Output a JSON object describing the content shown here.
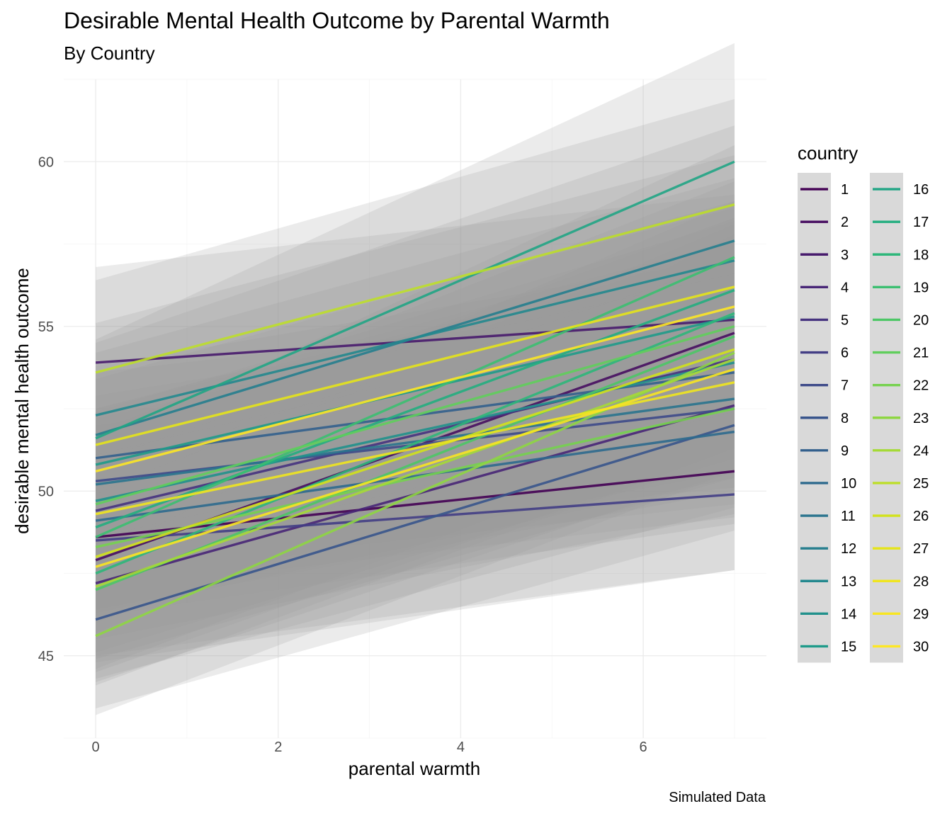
{
  "chart_data": {
    "type": "line",
    "title": "Desirable Mental Health Outcome by Parental Warmth",
    "subtitle": "By Country",
    "xlabel": "parental warmth",
    "ylabel": "desirable mental health outcome",
    "caption": "Simulated Data",
    "xlim": [
      -0.35,
      7.35
    ],
    "ylim": [
      42.5,
      62.5
    ],
    "x_ticks": [
      0,
      2,
      4,
      6
    ],
    "x_tick_labels": [
      "0",
      "2",
      "4",
      "6"
    ],
    "y_ticks": [
      45,
      50,
      55,
      60
    ],
    "y_tick_labels": [
      "45",
      "50",
      "55",
      "60"
    ],
    "grid": true,
    "legend": {
      "title": "country",
      "position": "right",
      "columns": 2
    },
    "confidence_band_color": "#999999",
    "series": [
      {
        "name": "1",
        "color": "#440154",
        "x": [
          0,
          7
        ],
        "y": [
          48.6,
          50.6
        ],
        "ci_lo": [
          44.8,
          47.6
        ],
        "ci_hi": [
          52.4,
          53.6
        ]
      },
      {
        "name": "2",
        "color": "#470E61",
        "x": [
          0,
          7
        ],
        "y": [
          47.9,
          54.8
        ],
        "ci_lo": [
          44.5,
          51.3
        ],
        "ci_hi": [
          51.3,
          58.3
        ]
      },
      {
        "name": "3",
        "color": "#481B6D",
        "x": [
          0,
          7
        ],
        "y": [
          53.9,
          55.2
        ],
        "ci_lo": [
          51.0,
          51.4
        ],
        "ci_hi": [
          56.8,
          59.0
        ]
      },
      {
        "name": "4",
        "color": "#482677",
        "x": [
          0,
          7
        ],
        "y": [
          47.2,
          52.6
        ],
        "ci_lo": [
          44.3,
          49.5
        ],
        "ci_hi": [
          50.1,
          55.7
        ]
      },
      {
        "name": "5",
        "color": "#46337F",
        "x": [
          0,
          7
        ],
        "y": [
          49.4,
          54.0
        ],
        "ci_lo": [
          46.3,
          50.4
        ],
        "ci_hi": [
          52.5,
          57.6
        ]
      },
      {
        "name": "6",
        "color": "#433E85",
        "x": [
          0,
          7
        ],
        "y": [
          48.5,
          49.9
        ],
        "ci_lo": [
          45.0,
          47.6
        ],
        "ci_hi": [
          52.0,
          52.2
        ]
      },
      {
        "name": "7",
        "color": "#3E4A89",
        "x": [
          0,
          7
        ],
        "y": [
          50.3,
          52.5
        ],
        "ci_lo": [
          47.0,
          49.2
        ],
        "ci_hi": [
          53.6,
          55.8
        ]
      },
      {
        "name": "8",
        "color": "#38558C",
        "x": [
          0,
          7
        ],
        "y": [
          46.1,
          52.0
        ],
        "ci_lo": [
          43.4,
          48.8
        ],
        "ci_hi": [
          48.8,
          55.2
        ]
      },
      {
        "name": "9",
        "color": "#33608D",
        "x": [
          0,
          7
        ],
        "y": [
          51.0,
          53.6
        ],
        "ci_lo": [
          48.2,
          50.1
        ],
        "ci_hi": [
          53.8,
          57.1
        ]
      },
      {
        "name": "10",
        "color": "#2E6A8E",
        "x": [
          0,
          7
        ],
        "y": [
          49.1,
          51.8
        ],
        "ci_lo": [
          46.2,
          49.0
        ],
        "ci_hi": [
          52.0,
          54.6
        ]
      },
      {
        "name": "11",
        "color": "#2A748E",
        "x": [
          0,
          7
        ],
        "y": [
          50.2,
          52.8
        ],
        "ci_lo": [
          47.5,
          49.6
        ],
        "ci_hi": [
          52.9,
          56.0
        ]
      },
      {
        "name": "12",
        "color": "#267E8E",
        "x": [
          0,
          7
        ],
        "y": [
          51.7,
          57.6
        ],
        "ci_lo": [
          48.9,
          54.1
        ],
        "ci_hi": [
          54.5,
          61.1
        ]
      },
      {
        "name": "13",
        "color": "#23888E",
        "x": [
          0,
          7
        ],
        "y": [
          52.3,
          57.0
        ],
        "ci_lo": [
          49.5,
          53.8
        ],
        "ci_hi": [
          55.1,
          60.2
        ]
      },
      {
        "name": "14",
        "color": "#21918C",
        "x": [
          0,
          7
        ],
        "y": [
          49.7,
          53.9
        ],
        "ci_lo": [
          46.9,
          50.6
        ],
        "ci_hi": [
          52.5,
          57.2
        ]
      },
      {
        "name": "15",
        "color": "#1F9B8A",
        "x": [
          0,
          7
        ],
        "y": [
          50.8,
          55.3
        ],
        "ci_lo": [
          48.0,
          52.0
        ],
        "ci_hi": [
          53.6,
          58.6
        ]
      },
      {
        "name": "16",
        "color": "#21A585",
        "x": [
          0,
          7
        ],
        "y": [
          51.6,
          60.0
        ],
        "ci_lo": [
          48.6,
          56.4
        ],
        "ci_hi": [
          54.6,
          63.6
        ]
      },
      {
        "name": "17",
        "color": "#24AE80",
        "x": [
          0,
          7
        ],
        "y": [
          48.9,
          56.1
        ],
        "ci_lo": [
          46.0,
          52.8
        ],
        "ci_hi": [
          51.8,
          59.4
        ]
      },
      {
        "name": "18",
        "color": "#2EB77A",
        "x": [
          0,
          7
        ],
        "y": [
          47.5,
          55.4
        ],
        "ci_lo": [
          44.6,
          52.0
        ],
        "ci_hi": [
          50.4,
          58.8
        ]
      },
      {
        "name": "19",
        "color": "#3CBF71",
        "x": [
          0,
          7
        ],
        "y": [
          48.6,
          57.1
        ],
        "ci_lo": [
          45.7,
          53.7
        ],
        "ci_hi": [
          51.5,
          60.5
        ]
      },
      {
        "name": "20",
        "color": "#4DC766",
        "x": [
          0,
          7
        ],
        "y": [
          47.0,
          54.7
        ],
        "ci_lo": [
          44.1,
          51.3
        ],
        "ci_hi": [
          49.9,
          58.1
        ]
      },
      {
        "name": "21",
        "color": "#60CE5C",
        "x": [
          0,
          7
        ],
        "y": [
          49.6,
          55.0
        ],
        "ci_lo": [
          46.8,
          51.8
        ],
        "ci_hi": [
          52.4,
          58.2
        ]
      },
      {
        "name": "22",
        "color": "#76D24F",
        "x": [
          0,
          7
        ],
        "y": [
          48.3,
          52.5
        ],
        "ci_lo": [
          45.5,
          49.3
        ],
        "ci_hi": [
          51.1,
          55.7
        ]
      },
      {
        "name": "23",
        "color": "#8ED642",
        "x": [
          0,
          7
        ],
        "y": [
          45.6,
          54.2
        ],
        "ci_lo": [
          43.2,
          50.6
        ],
        "ci_hi": [
          48.0,
          57.8
        ]
      },
      {
        "name": "24",
        "color": "#A5DA36",
        "x": [
          0,
          7
        ],
        "y": [
          47.1,
          54.0
        ],
        "ci_lo": [
          44.2,
          50.6
        ],
        "ci_hi": [
          50.0,
          57.4
        ]
      },
      {
        "name": "25",
        "color": "#BDDE2A",
        "x": [
          0,
          7
        ],
        "y": [
          53.6,
          58.7
        ],
        "ci_lo": [
          50.8,
          55.5
        ],
        "ci_hi": [
          56.4,
          61.9
        ]
      },
      {
        "name": "26",
        "color": "#D2E21B",
        "x": [
          0,
          7
        ],
        "y": [
          48.0,
          54.3
        ],
        "ci_lo": [
          45.1,
          51.0
        ],
        "ci_hi": [
          50.9,
          57.6
        ]
      },
      {
        "name": "27",
        "color": "#E5E419",
        "x": [
          0,
          7
        ],
        "y": [
          51.4,
          56.2
        ],
        "ci_lo": [
          48.6,
          52.9
        ],
        "ci_hi": [
          54.2,
          59.5
        ]
      },
      {
        "name": "28",
        "color": "#F0E51F",
        "x": [
          0,
          7
        ],
        "y": [
          49.3,
          53.3
        ],
        "ci_lo": [
          46.4,
          50.0
        ],
        "ci_hi": [
          52.2,
          56.6
        ]
      },
      {
        "name": "29",
        "color": "#F8E621",
        "x": [
          0,
          7
        ],
        "y": [
          47.7,
          53.7
        ],
        "ci_lo": [
          44.9,
          50.4
        ],
        "ci_hi": [
          50.5,
          57.0
        ]
      },
      {
        "name": "30",
        "color": "#FDE725",
        "x": [
          0,
          7
        ],
        "y": [
          50.6,
          55.6
        ],
        "ci_lo": [
          47.8,
          52.4
        ],
        "ci_hi": [
          53.4,
          58.8
        ]
      }
    ]
  }
}
